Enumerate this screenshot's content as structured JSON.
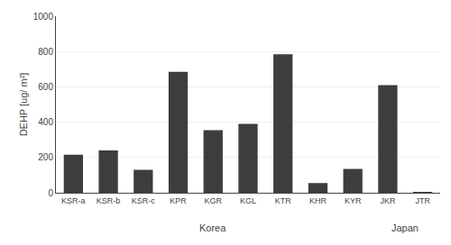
{
  "chart_data": {
    "type": "bar",
    "categories": [
      "KSR-a",
      "KSR-b",
      "KSR-c",
      "KPR",
      "KGR",
      "KGL",
      "KTR",
      "KHR",
      "KYR",
      "JKR",
      "JTR"
    ],
    "values": [
      215,
      240,
      130,
      685,
      355,
      390,
      785,
      55,
      135,
      610,
      5
    ],
    "color": "#3d3d3d",
    "ylabel": "DEHP [ug/ m²]",
    "ylim": [
      0,
      1000
    ],
    "yticks": [
      0,
      200,
      400,
      600,
      800,
      1000
    ],
    "grid": true,
    "annotations": [
      {
        "text": "Korea",
        "span": [
          "KSR-a",
          "KYR"
        ]
      },
      {
        "text": "Japan",
        "span": [
          "JKR",
          "JTR"
        ]
      }
    ]
  }
}
